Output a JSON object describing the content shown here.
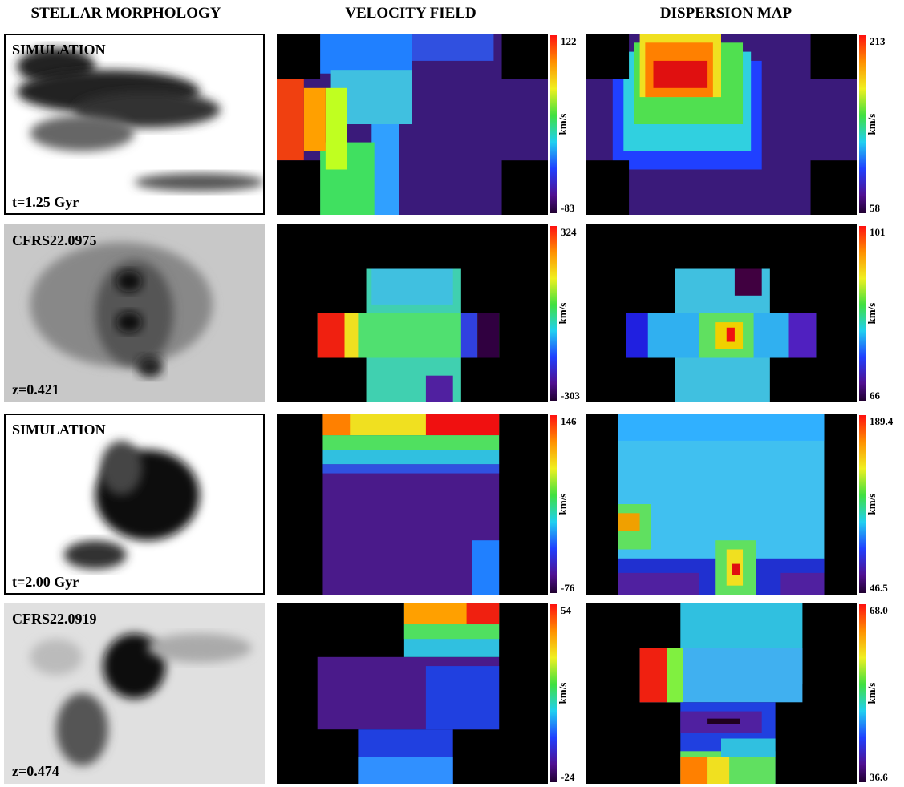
{
  "columns": [
    "STELLAR MORPHOLOGY",
    "VELOCITY FIELD",
    "DISPERSION MAP"
  ],
  "rows": [
    {
      "label": "SIMULATION",
      "note": "t=1.25 Gyr",
      "velocity": {
        "max": "122",
        "min": "-83",
        "unit": "km/s"
      },
      "dispersion": {
        "max": "213",
        "min": "58",
        "unit": "km/s"
      }
    },
    {
      "label": "CFRS22.0975",
      "note": "z=0.421",
      "velocity": {
        "max": "324",
        "min": "-303",
        "unit": "km/s"
      },
      "dispersion": {
        "max": "101",
        "min": "66",
        "unit": "km/s"
      }
    },
    {
      "label": "SIMULATION",
      "note": "t=2.00 Gyr",
      "velocity": {
        "max": "146",
        "min": "-76",
        "unit": "km/s"
      },
      "dispersion": {
        "max": "189.4",
        "min": "46.5",
        "unit": "km/s"
      }
    },
    {
      "label": "CFRS22.0919",
      "note": "z=0.474",
      "velocity": {
        "max": "54",
        "min": "-24",
        "unit": "km/s"
      },
      "dispersion": {
        "max": "68.0",
        "min": "36.6",
        "unit": "km/s"
      }
    }
  ]
}
